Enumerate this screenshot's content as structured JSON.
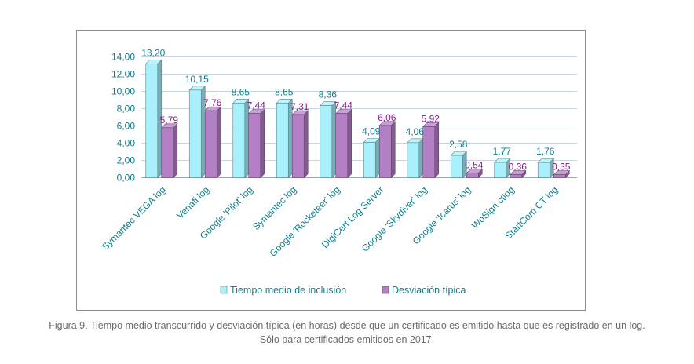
{
  "chart_data": {
    "type": "bar",
    "title": "",
    "xlabel": "",
    "ylabel": "",
    "ylim": [
      0,
      14
    ],
    "yticks": [
      "0,00",
      "2,00",
      "4,00",
      "6,00",
      "8,00",
      "10,00",
      "12,00",
      "14,00"
    ],
    "grid": true,
    "legend_position": "bottom",
    "categories": [
      "Symantec VEGA log",
      "Venafi log",
      "Google 'Pilot' log",
      "Symantec log",
      "Google 'Rocketeer' log",
      "DigiCert Log Server",
      "Google 'Skydiver' log",
      "Google 'Icarus' log",
      "WoSign ctlog",
      "StartCom CT log"
    ],
    "series": [
      {
        "name": "Tiempo medio de inclusión",
        "values": [
          13.2,
          10.15,
          8.65,
          8.65,
          8.36,
          4.09,
          4.06,
          2.58,
          1.77,
          1.76
        ],
        "labels": [
          "13,20",
          "10,15",
          "8,65",
          "8,65",
          "8,36",
          "4,09",
          "4,06",
          "2,58",
          "1,77",
          "1,76"
        ],
        "color": "#a8f0fb",
        "label_color": "#0e7f8c"
      },
      {
        "name": "Desviación típica",
        "values": [
          5.79,
          7.76,
          7.44,
          7.31,
          7.44,
          6.06,
          5.92,
          0.54,
          0.36,
          0.35
        ],
        "labels": [
          "5,79",
          "7,76",
          "7,44",
          "7,31",
          "7,44",
          "6,06",
          "5,92",
          "0,54",
          "0,36",
          "0,35"
        ],
        "color": "#b57fc6",
        "label_color": "#8a1a8e"
      }
    ]
  },
  "caption": {
    "line1": "Figura 9. Tiempo medio transcurrido y desviación típica (en horas) desde que un certificado es emitido hasta que es registrado en un log.",
    "line2": "Sólo para certificados emitidos en 2017."
  }
}
